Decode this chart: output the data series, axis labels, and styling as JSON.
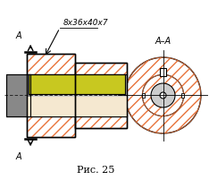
{
  "title": "Рис. 25",
  "annotation_text": "8x36x40x7",
  "section_label": "A–A",
  "cut_label_top": "A",
  "cut_label_bottom": "A",
  "hatch_color": "#e8733a",
  "shaft_color_dark": "#888888",
  "shaft_color_mid": "#aaaaaa",
  "shaft_color_light": "#cccccc",
  "key_color": "#c8c820",
  "hub_fill": "#f5e8d0",
  "background": "#ffffff",
  "fig_width": 2.34,
  "fig_height": 2.11,
  "dpi": 100
}
